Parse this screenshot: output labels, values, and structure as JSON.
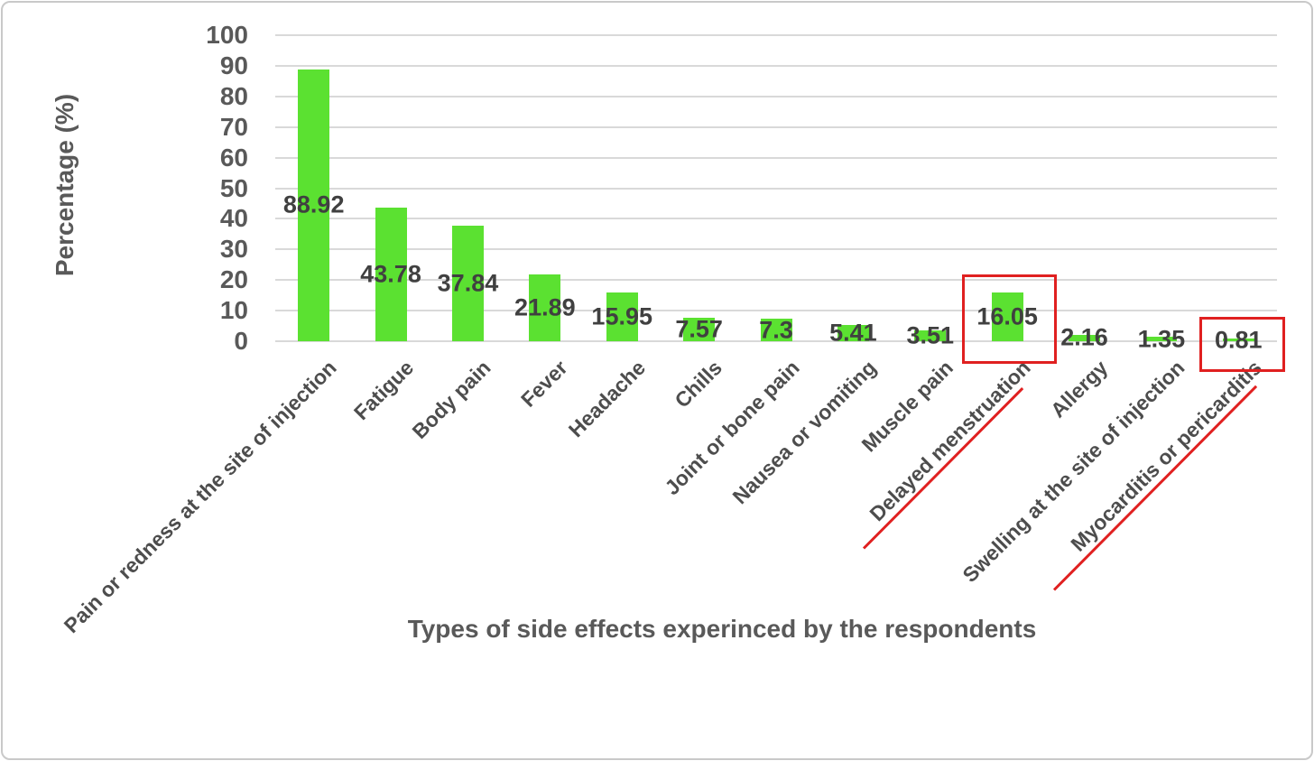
{
  "chart_data": {
    "type": "bar",
    "xlabel": "Types of side effects experinced by the respondents",
    "ylabel": "Percentage (%)",
    "ylim": [
      0,
      100
    ],
    "yticks": [
      0,
      10,
      20,
      30,
      40,
      50,
      60,
      70,
      80,
      90,
      100
    ],
    "grid": "horizontal",
    "legend": "none",
    "categories": [
      "Pain or redness at the site of injection",
      "Fatigue",
      "Body pain",
      "Fever",
      "Headache",
      "Chills",
      "Joint or bone pain",
      "Nausea or vomiting",
      "Muscle pain",
      "Delayed menstruation",
      "Allergy",
      "Swelling at the site of injection",
      "Myocarditis or pericarditis"
    ],
    "values": [
      88.92,
      43.78,
      37.84,
      21.89,
      15.95,
      7.57,
      7.3,
      5.41,
      3.51,
      16.05,
      2.16,
      1.35,
      0.81
    ],
    "data_labels": [
      "88.92",
      "43.78",
      "37.84",
      "21.89",
      "15.95",
      "7.57",
      "7.3",
      "5.41",
      "3.51",
      "16.05",
      "2.16",
      "1.35",
      "0.81"
    ],
    "annotations": [
      {
        "type": "box",
        "category": "Delayed menstruation",
        "around": "bar and value 16.05"
      },
      {
        "type": "box",
        "category": "Myocarditis or pericarditis",
        "around": "value 0.81"
      },
      {
        "type": "underline",
        "category": "Delayed menstruation"
      },
      {
        "type": "underline",
        "category": "Myocarditis or pericarditis"
      }
    ],
    "colors": {
      "bar": "#5BE131",
      "grid": "#D9D9D9",
      "axis_text": "#595959",
      "data_label": "#404040",
      "category_label": "#4D4D4D",
      "highlight": "#E02020"
    }
  }
}
